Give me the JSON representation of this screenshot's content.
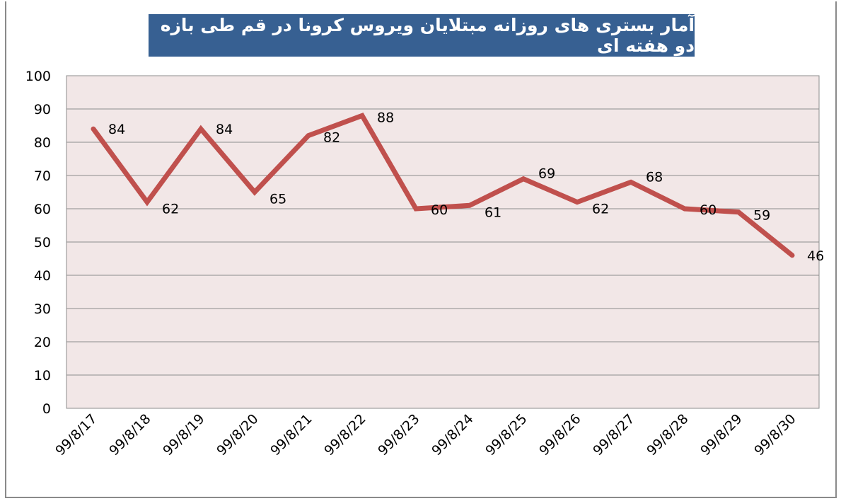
{
  "chart_data": {
    "type": "line",
    "title": "آمار بستری های روزانه مبتلایان ویروس کرونا در قم طی بازه دو هفته ای",
    "xlabel": "",
    "ylabel": "",
    "categories": [
      "99/8/17",
      "99/8/18",
      "99/8/19",
      "99/8/20",
      "99/8/21",
      "99/8/22",
      "99/8/23",
      "99/8/24",
      "99/8/25",
      "99/8/26",
      "99/8/27",
      "99/8/28",
      "99/8/29",
      "99/8/30"
    ],
    "series": [
      {
        "name": "",
        "values": [
          84,
          62,
          84,
          65,
          82,
          88,
          60,
          61,
          69,
          62,
          68,
          60,
          59,
          46
        ]
      }
    ],
    "ylim": [
      0,
      100
    ],
    "yticks": [
      0,
      10,
      20,
      30,
      40,
      50,
      60,
      70,
      80,
      90,
      100
    ],
    "grid": true,
    "legend": "none",
    "colors": {
      "line": "#C0504D",
      "plot_bg": "#F2E7E7",
      "title_bg": "#376092",
      "grid": "#8C8C8C"
    }
  }
}
